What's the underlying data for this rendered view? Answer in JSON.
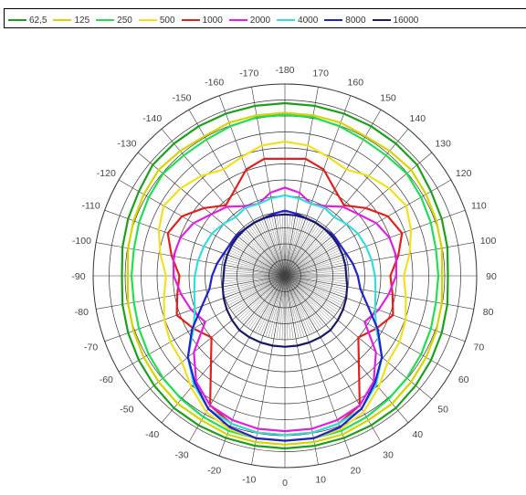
{
  "chart_data": {
    "type": "line",
    "subtype": "polar",
    "title": "",
    "legend_position": "top",
    "grid": true,
    "angular_ticks": [
      "-180",
      "-170",
      "-160",
      "-150",
      "-140",
      "-130",
      "-120",
      "-110",
      "-100",
      "-90",
      "-80",
      "-70",
      "-60",
      "-50",
      "-40",
      "-30",
      "-20",
      "-10",
      "0",
      "10",
      "20",
      "30",
      "40",
      "50",
      "60",
      "70",
      "80",
      "90",
      "100",
      "110",
      "120",
      "130",
      "140",
      "150",
      "160",
      "170",
      "180"
    ],
    "series": [
      {
        "name": "62,5",
        "color": "#1e9e1e",
        "radius": [
          0.9,
          0.9,
          0.9,
          0.9,
          0.9,
          0.9,
          0.88,
          0.87,
          0.86,
          0.85,
          0.86,
          0.87,
          0.88,
          0.89,
          0.9,
          0.9,
          0.9,
          0.9,
          0.9,
          0.9,
          0.9,
          0.9,
          0.9,
          0.89,
          0.88,
          0.87,
          0.86,
          0.85,
          0.86,
          0.87,
          0.88,
          0.9,
          0.9,
          0.9,
          0.9,
          0.9
        ]
      },
      {
        "name": "125",
        "color": "#d4d400",
        "radius": [
          0.85,
          0.85,
          0.85,
          0.84,
          0.85,
          0.86,
          0.85,
          0.84,
          0.83,
          0.82,
          0.83,
          0.84,
          0.85,
          0.86,
          0.87,
          0.87,
          0.88,
          0.88,
          0.88,
          0.88,
          0.88,
          0.87,
          0.87,
          0.86,
          0.85,
          0.84,
          0.83,
          0.82,
          0.83,
          0.84,
          0.85,
          0.86,
          0.85,
          0.84,
          0.85,
          0.85
        ]
      },
      {
        "name": "250",
        "color": "#22dd55",
        "radius": [
          0.84,
          0.84,
          0.83,
          0.82,
          0.82,
          0.83,
          0.82,
          0.81,
          0.8,
          0.8,
          0.8,
          0.81,
          0.82,
          0.83,
          0.84,
          0.85,
          0.86,
          0.86,
          0.86,
          0.86,
          0.86,
          0.85,
          0.84,
          0.83,
          0.82,
          0.81,
          0.8,
          0.8,
          0.8,
          0.81,
          0.82,
          0.83,
          0.82,
          0.82,
          0.83,
          0.84
        ]
      },
      {
        "name": "500",
        "color": "#f0e020",
        "radius": [
          0.7,
          0.69,
          0.66,
          0.64,
          0.68,
          0.71,
          0.73,
          0.7,
          0.66,
          0.62,
          0.64,
          0.67,
          0.69,
          0.7,
          0.76,
          0.82,
          0.85,
          0.86,
          0.86,
          0.86,
          0.85,
          0.82,
          0.76,
          0.7,
          0.69,
          0.67,
          0.64,
          0.62,
          0.66,
          0.7,
          0.73,
          0.71,
          0.68,
          0.64,
          0.66,
          0.69
        ]
      },
      {
        "name": "1000",
        "color": "#e02020",
        "radius": [
          0.61,
          0.62,
          0.59,
          0.52,
          0.48,
          0.55,
          0.62,
          0.65,
          0.6,
          0.55,
          0.57,
          0.6,
          0.55,
          0.5,
          0.6,
          0.78,
          0.82,
          0.83,
          0.83,
          0.83,
          0.82,
          0.78,
          0.6,
          0.5,
          0.55,
          0.6,
          0.57,
          0.55,
          0.6,
          0.65,
          0.62,
          0.55,
          0.48,
          0.52,
          0.59,
          0.62
        ]
      },
      {
        "name": "2000",
        "color": "#e020e0",
        "radius": [
          0.46,
          0.44,
          0.4,
          0.42,
          0.47,
          0.5,
          0.55,
          0.58,
          0.59,
          0.58,
          0.55,
          0.52,
          0.48,
          0.62,
          0.72,
          0.78,
          0.8,
          0.81,
          0.81,
          0.81,
          0.8,
          0.78,
          0.72,
          0.62,
          0.48,
          0.52,
          0.55,
          0.58,
          0.59,
          0.58,
          0.55,
          0.5,
          0.47,
          0.42,
          0.4,
          0.44
        ]
      },
      {
        "name": "4000",
        "color": "#33dddd",
        "radius": [
          0.42,
          0.41,
          0.4,
          0.41,
          0.4,
          0.42,
          0.44,
          0.45,
          0.46,
          0.47,
          0.48,
          0.5,
          0.55,
          0.66,
          0.74,
          0.8,
          0.82,
          0.83,
          0.83,
          0.83,
          0.82,
          0.8,
          0.74,
          0.66,
          0.55,
          0.5,
          0.48,
          0.47,
          0.46,
          0.45,
          0.44,
          0.42,
          0.4,
          0.41,
          0.4,
          0.41
        ]
      },
      {
        "name": "8000",
        "color": "#2222cc",
        "radius": [
          0.34,
          0.33,
          0.32,
          0.32,
          0.32,
          0.33,
          0.33,
          0.34,
          0.36,
          0.38,
          0.4,
          0.46,
          0.56,
          0.66,
          0.73,
          0.8,
          0.84,
          0.86,
          0.86,
          0.86,
          0.84,
          0.8,
          0.73,
          0.66,
          0.56,
          0.46,
          0.4,
          0.38,
          0.36,
          0.34,
          0.33,
          0.33,
          0.32,
          0.32,
          0.32,
          0.33
        ]
      },
      {
        "name": "16000",
        "color": "#1a1a66",
        "radius": [
          0.32,
          0.32,
          0.32,
          0.32,
          0.32,
          0.32,
          0.32,
          0.32,
          0.32,
          0.32,
          0.33,
          0.34,
          0.35,
          0.36,
          0.37,
          0.37,
          0.37,
          0.37,
          0.37,
          0.37,
          0.37,
          0.37,
          0.37,
          0.36,
          0.35,
          0.34,
          0.33,
          0.32,
          0.32,
          0.32,
          0.32,
          0.32,
          0.32,
          0.32,
          0.32,
          0.32
        ]
      }
    ]
  },
  "legend_labels": [
    "62,5",
    "125",
    "250",
    "500",
    "1000",
    "2000",
    "4000",
    "8000",
    "16000"
  ],
  "legend_colors": [
    "#1e9e1e",
    "#d4d400",
    "#22dd55",
    "#f0e020",
    "#e02020",
    "#e020e0",
    "#33dddd",
    "#2222cc",
    "#1a1a66"
  ]
}
